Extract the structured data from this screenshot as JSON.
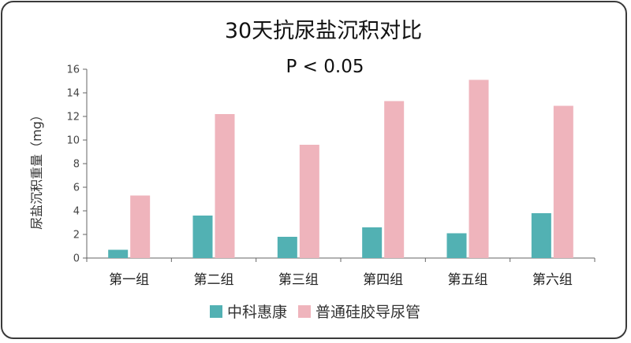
{
  "chart_data": {
    "type": "bar",
    "title": "30天抗尿盐沉积对比",
    "subtitle": "P < 0.05",
    "xlabel": "",
    "ylabel": "尿盐沉积重量（mg）",
    "ylim": [
      0,
      16
    ],
    "yticks": [
      "0",
      "2",
      "4",
      "6",
      "8",
      "10",
      "12",
      "14",
      "16"
    ],
    "grid": false,
    "legend_position": "bottom",
    "categories": [
      "第一组",
      "第二组",
      "第三组",
      "第四组",
      "第五组",
      "第六组"
    ],
    "series": [
      {
        "name": "中科惠康",
        "color": "#52b1b3",
        "values": [
          0.7,
          3.6,
          1.8,
          2.6,
          2.1,
          3.8
        ]
      },
      {
        "name": "普通硅胶导尿管",
        "color": "#efb4bc",
        "values": [
          5.3,
          12.2,
          9.6,
          13.3,
          15.1,
          12.9
        ]
      }
    ]
  }
}
